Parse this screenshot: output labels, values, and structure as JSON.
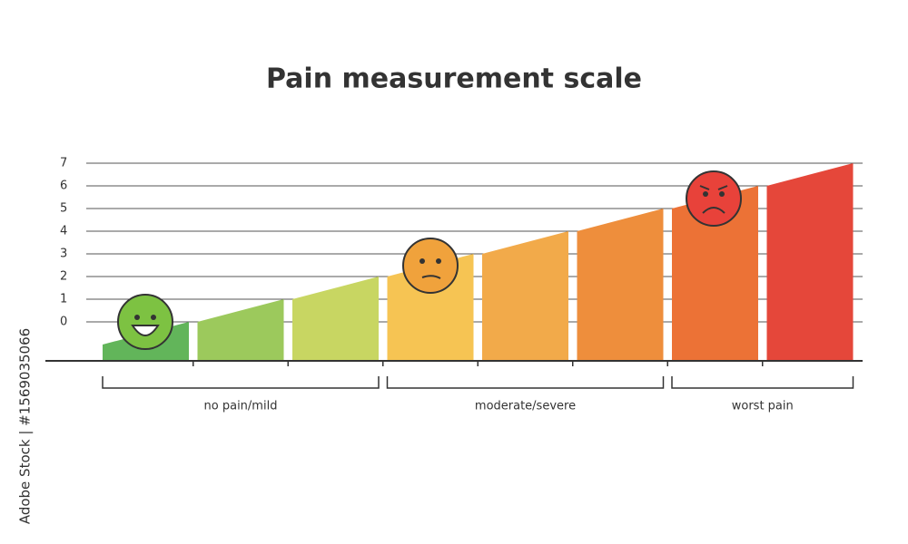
{
  "chart_data": {
    "type": "ramp",
    "title": "Pain measurement scale",
    "values": [
      0,
      1,
      2,
      3,
      4,
      5,
      6,
      7
    ],
    "colors": [
      "#62b55a",
      "#9cc95c",
      "#c8d662",
      "#f6c453",
      "#f2aa4a",
      "#ee8e3c",
      "#ec7236",
      "#e5473a"
    ],
    "groups": [
      {
        "label": "no pain/mild",
        "span": 3
      },
      {
        "label": "moderate/severe",
        "span": 3
      },
      {
        "label": "worst pain",
        "span": 2
      }
    ],
    "ylim": [
      -1.72,
      7
    ],
    "yticks": [
      0,
      1,
      2,
      3,
      4,
      5,
      6,
      7
    ],
    "grid": true
  },
  "watermark": "Adobe Stock | #1569035066"
}
